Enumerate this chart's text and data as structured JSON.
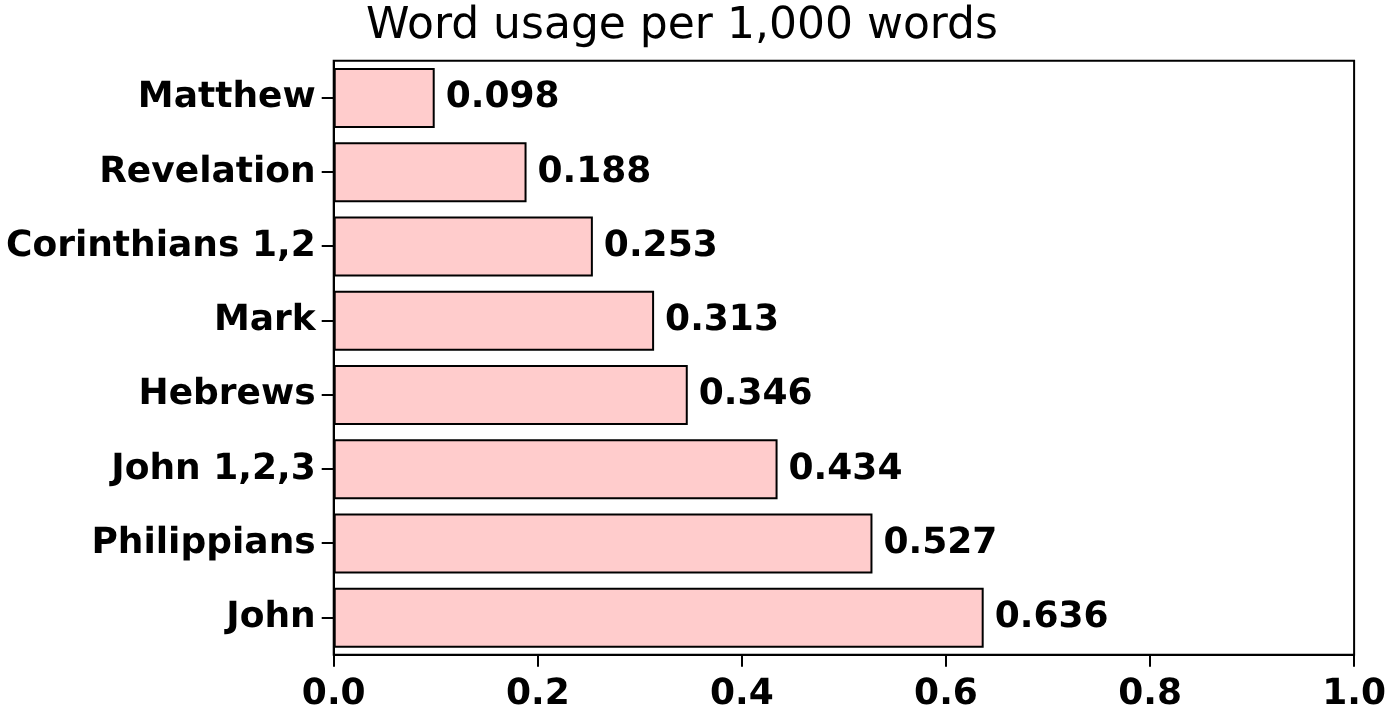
{
  "chart_data": {
    "type": "bar",
    "orientation": "horizontal",
    "title": "Word usage per 1,000 words",
    "categories": [
      "Matthew",
      "Revelation",
      "Corinthians 1,2",
      "Mark",
      "Hebrews",
      "John 1,2,3",
      "Philippians",
      "John"
    ],
    "values": [
      0.098,
      0.188,
      0.253,
      0.313,
      0.346,
      0.434,
      0.527,
      0.636
    ],
    "color": "#ffcccc",
    "xlim": [
      0,
      1
    ],
    "xticks": [
      {
        "value": 0,
        "label": "0.0"
      },
      0.2,
      0.4,
      0.6,
      0.8,
      {
        "value": 1,
        "label": "1.0"
      }
    ],
    "data_labels": true,
    "grid": false,
    "legend": false
  }
}
